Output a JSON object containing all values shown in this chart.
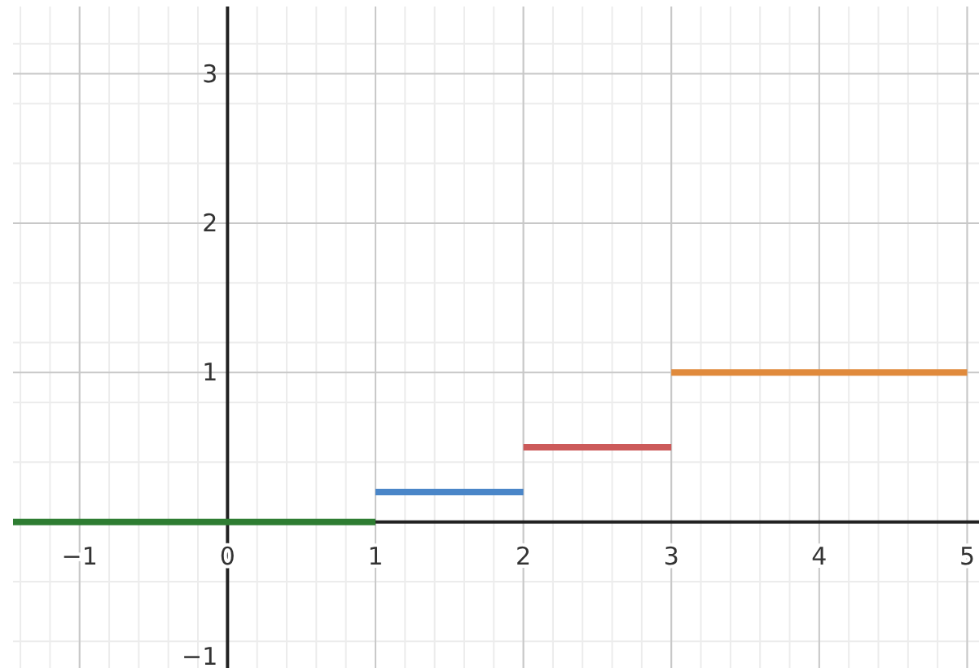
{
  "chart_data": {
    "type": "line",
    "xlim": [
      -1.45,
      5.08
    ],
    "ylim": [
      -1.0,
      3.45
    ],
    "xticks": [
      -1,
      0,
      1,
      2,
      3,
      4,
      5
    ],
    "yticks": [
      -1,
      1,
      2,
      3
    ],
    "grid": true,
    "marker": "none",
    "line_style": "solid",
    "series": [
      {
        "color": "#2e7d32",
        "x": [
          -1.45,
          1
        ],
        "values": [
          0,
          0
        ]
      },
      {
        "color": "#4a86c8",
        "x": [
          1,
          2
        ],
        "values": [
          0.2,
          0.2
        ]
      },
      {
        "color": "#cc5a5a",
        "x": [
          2,
          3
        ],
        "values": [
          0.5,
          0.5
        ]
      },
      {
        "color": "#e08a3c",
        "x": [
          3,
          5
        ],
        "values": [
          1,
          1
        ]
      }
    ]
  }
}
